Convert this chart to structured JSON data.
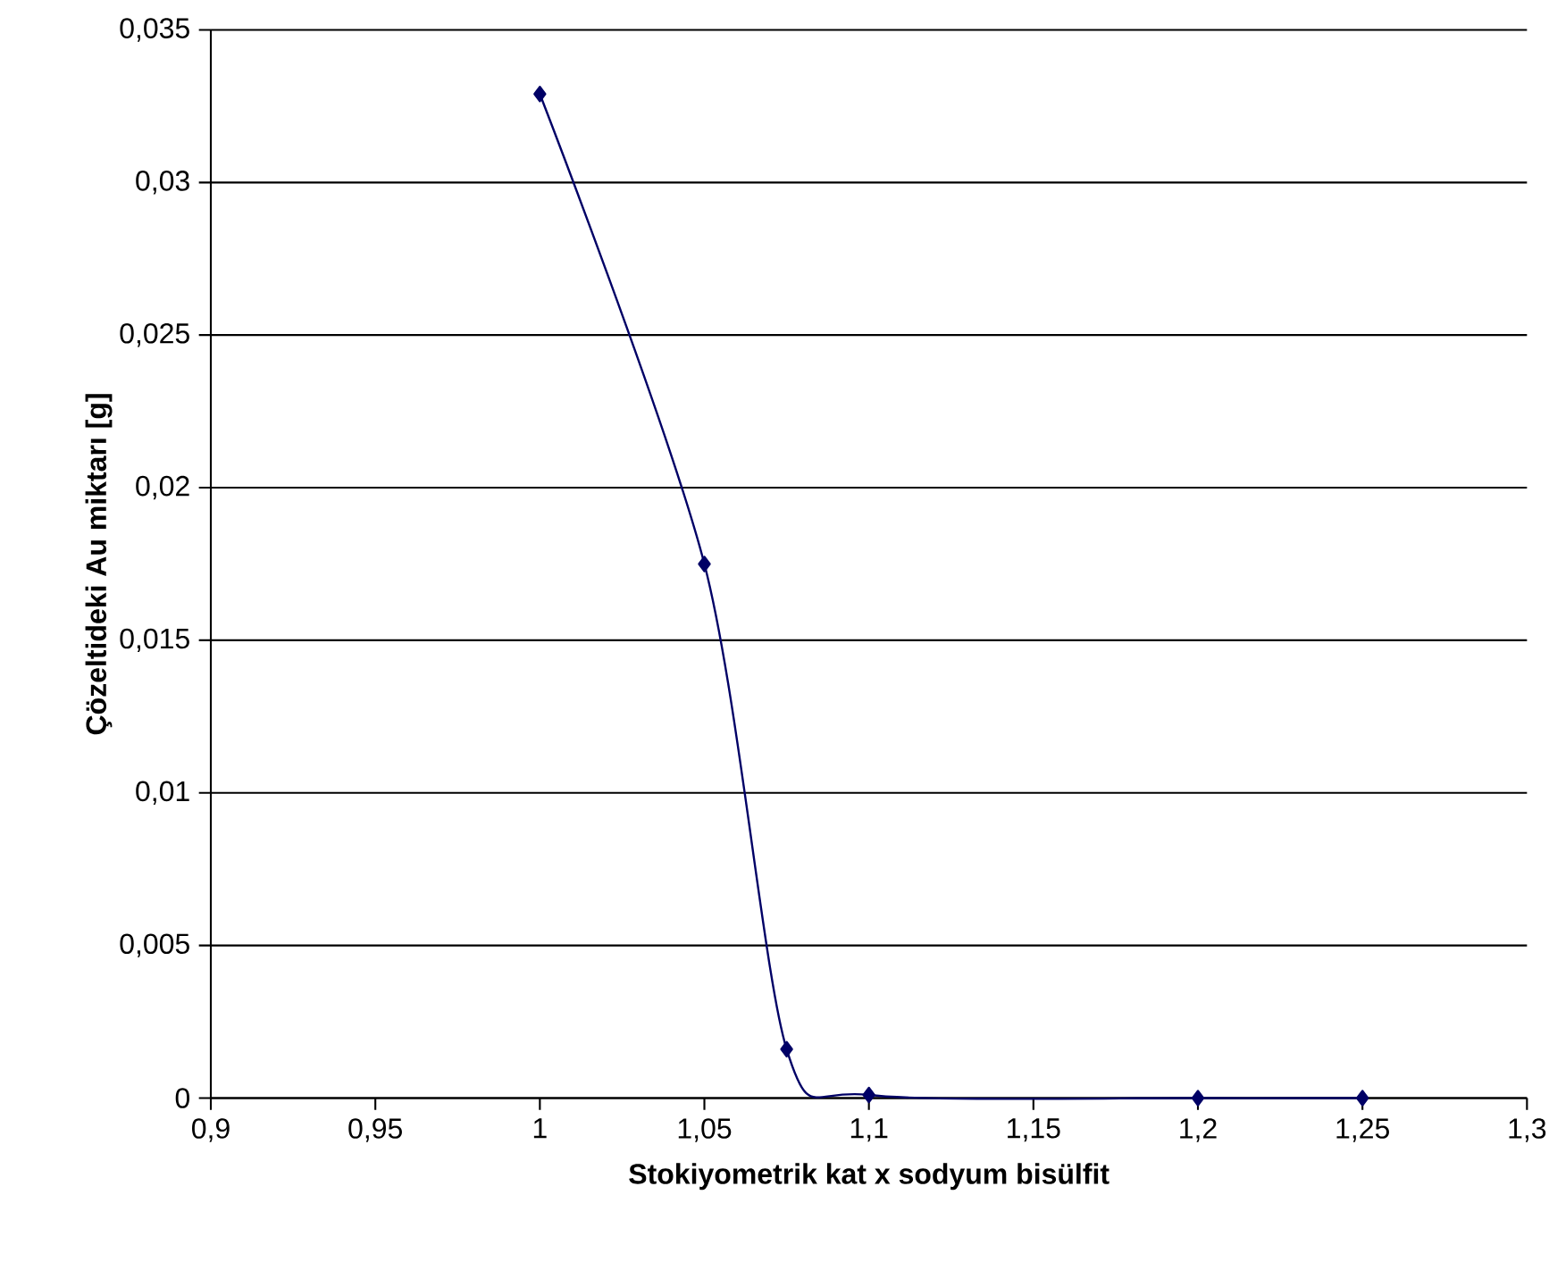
{
  "chart_data": {
    "type": "line",
    "xlabel": "Stokiyometrik kat x sodyum bisülfit",
    "ylabel": "Çözeltideki Au miktarı [g]",
    "x": [
      1,
      1.05,
      1.075,
      1.1,
      1.2,
      1.25
    ],
    "series": [
      {
        "color": "#000066",
        "values": [
          0.0329,
          0.0175,
          0.0016,
          0.0001,
          0,
          0
        ]
      }
    ],
    "xlim": [
      0.9,
      1.3
    ],
    "xticks": [
      {
        "value": 0.9,
        "label": "0,9"
      },
      {
        "value": 0.95,
        "label": "0,95"
      },
      {
        "value": 1,
        "label": "1"
      },
      {
        "value": 1.05,
        "label": "1,05"
      },
      {
        "value": 1.1,
        "label": "1,1"
      },
      {
        "value": 1.15,
        "label": "1,15"
      },
      {
        "value": 1.2,
        "label": "1,2"
      },
      {
        "value": 1.25,
        "label": "1,25"
      },
      {
        "value": 1.3,
        "label": "1,3"
      }
    ],
    "ylim": [
      0,
      0.035
    ],
    "yticks": [
      {
        "value": 0,
        "label": "0"
      },
      {
        "value": 0.005,
        "label": "0,005"
      },
      {
        "value": 0.01,
        "label": "0,01"
      },
      {
        "value": 0.015,
        "label": "0,015"
      },
      {
        "value": 0.02,
        "label": "0,02"
      },
      {
        "value": 0.025,
        "label": "0,025"
      },
      {
        "value": 0.03,
        "label": "0,03"
      },
      {
        "value": 0.035,
        "label": "0,035"
      }
    ],
    "grid": "y",
    "marker": "diamond",
    "line_style": "solid",
    "legend": false
  }
}
